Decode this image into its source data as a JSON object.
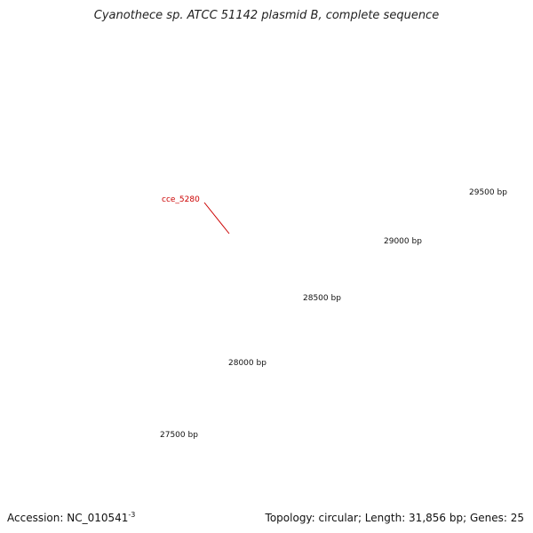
{
  "title": "Cyanothece sp. ATCC 51142 plasmid B, complete sequence",
  "footer": {
    "accession": "Accession: NC_010541",
    "accession_mark": "-3",
    "summary": "Topology: circular; Length: 31,856 bp; Genes: 25"
  },
  "colors": {
    "forward_strand": "#1a1a80",
    "reverse_strand": "#ee1111",
    "backbone": "#888888",
    "ticks": "#2a8a2a",
    "gene_label": "#cc0000"
  },
  "scale_labels": [
    "27500 bp",
    "28000 bp",
    "28500 bp",
    "29000 bp",
    "29500 bp"
  ],
  "scale_label_positions_bp": [
    27500,
    28000,
    28500,
    29000,
    29500
  ],
  "gene_callouts": [
    {
      "name": "cce_5280"
    }
  ]
}
